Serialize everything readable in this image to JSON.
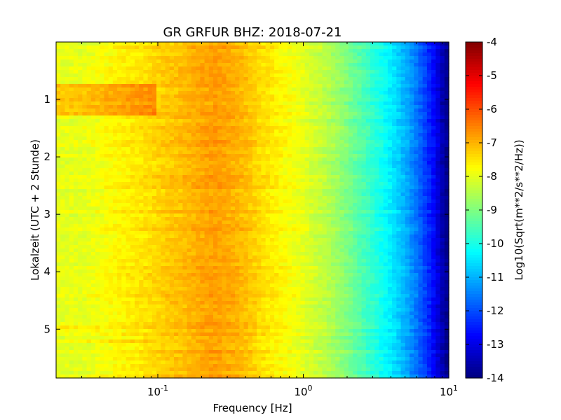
{
  "chart_data": {
    "type": "heatmap",
    "title": "GR GRFUR BHZ: 2018-07-21",
    "xlabel": "Frequency [Hz]",
    "ylabel": "Lokalzeit (UTC + 2 Stunde)",
    "x_scale": "log",
    "xlim": [
      0.02,
      10
    ],
    "x_ticks": [
      {
        "value": 0.1,
        "base": "10",
        "exp": "-1"
      },
      {
        "value": 1,
        "base": "10",
        "exp": "0"
      },
      {
        "value": 10,
        "base": "10",
        "exp": "1"
      }
    ],
    "ylim": [
      0,
      5.85
    ],
    "y_inverted": true,
    "y_ticks": [
      "1",
      "2",
      "3",
      "4",
      "5"
    ],
    "colormap": "jet",
    "colorbar": {
      "label": "Log10(Sqrt(m**2/s**2/Hz))",
      "range": [
        -14,
        -4
      ],
      "ticks": [
        "-4",
        "-5",
        "-6",
        "-7",
        "-8",
        "-9",
        "-10",
        "-11",
        "-12",
        "-13",
        "-14"
      ]
    },
    "frequency_profile": {
      "frequency_hz": [
        0.02,
        0.03,
        0.05,
        0.08,
        0.12,
        0.15,
        0.2,
        0.25,
        0.3,
        0.4,
        0.5,
        0.7,
        1.0,
        1.5,
        2.0,
        3.0,
        4.0,
        5.0,
        6.0,
        7.0,
        8.0,
        9.0,
        10.0
      ],
      "log10_amplitude": [
        -8.0,
        -8.0,
        -7.7,
        -7.5,
        -7.2,
        -7.1,
        -6.9,
        -6.8,
        -6.9,
        -7.1,
        -7.4,
        -7.7,
        -8.0,
        -8.5,
        -9.0,
        -9.8,
        -10.4,
        -11.0,
        -11.6,
        -12.2,
        -12.8,
        -13.5,
        -14.0
      ]
    },
    "time_features": [
      {
        "t_start": 0.75,
        "t_end": 1.25,
        "f_max_hz": 0.1,
        "offset": 0.8
      },
      {
        "t_start": 4.95,
        "t_end": 5.05,
        "f_max_hz": 0.04,
        "offset": 0.3
      },
      {
        "t_start": 5.15,
        "t_end": 5.25,
        "f_max_hz": 0.1,
        "offset": 0.3
      }
    ]
  }
}
